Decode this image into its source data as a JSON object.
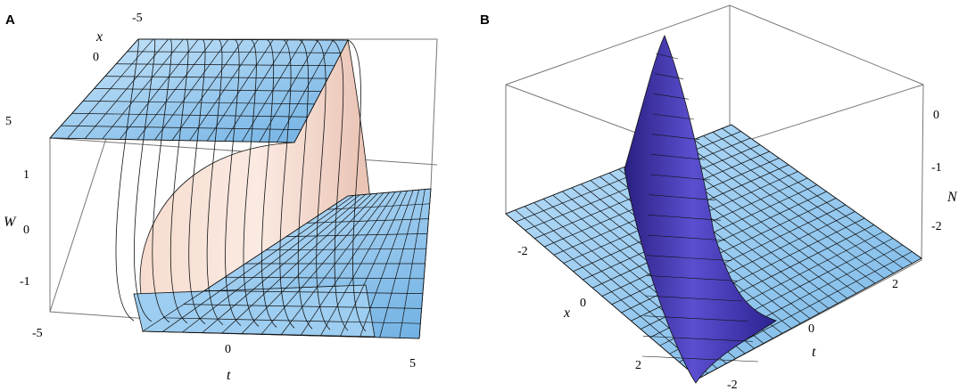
{
  "chart_data": [
    {
      "panel": "A",
      "type": "surface3d",
      "xlabel": "t",
      "ylabel": "x",
      "zlabel": "W",
      "t_ticks": [
        "-5",
        "0",
        "5"
      ],
      "x_ticks": [
        "-5",
        "0",
        "5"
      ],
      "z_ticks": [
        "1",
        "0",
        "-1"
      ],
      "xlim": [
        -5,
        5
      ],
      "ylim": [
        -5,
        5
      ],
      "zlim": [
        -1.6,
        1.6
      ],
      "shape": "kink",
      "z_levels": [
        1.5,
        -1.5
      ],
      "colors": {
        "surface": "#7cb6e6",
        "surface_light": "#bfe0f8",
        "wall": "#f3d2c4"
      }
    },
    {
      "panel": "B",
      "type": "surface3d",
      "xlabel": "t",
      "ylabel": "x",
      "zlabel": "N",
      "t_ticks": [
        "-2",
        "0",
        "2"
      ],
      "x_ticks": [
        "-2",
        "0",
        "2"
      ],
      "z_ticks": [
        "0",
        "-1",
        "-2"
      ],
      "xlim": [
        -3,
        3
      ],
      "ylim": [
        -3,
        3
      ],
      "zlim": [
        -2.5,
        0.2
      ],
      "shape": "bright-peak",
      "colors": {
        "surface": "#8cc4ee",
        "peak": "#3a2fa0",
        "peak_light": "#7b6fe0"
      }
    }
  ]
}
